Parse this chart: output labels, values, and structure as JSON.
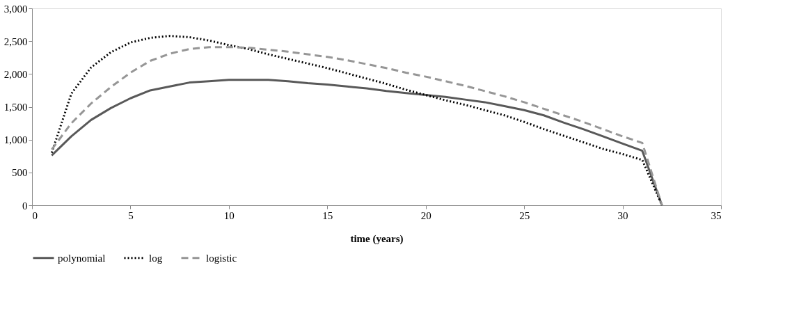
{
  "chart_data": {
    "type": "line",
    "xlabel": "time (years)",
    "legend": "bottom",
    "grid": false,
    "marker": "none",
    "x": [
      1,
      2,
      3,
      4,
      5,
      6,
      7,
      8,
      9,
      10,
      11,
      12,
      13,
      14,
      15,
      16,
      17,
      18,
      19,
      20,
      21,
      22,
      23,
      24,
      25,
      26,
      27,
      28,
      29,
      30,
      31,
      32
    ],
    "xlim": [
      0,
      35
    ],
    "xticks": [
      0,
      5,
      10,
      15,
      20,
      25,
      30,
      35
    ],
    "ylim": [
      0,
      3000
    ],
    "yticks": [
      0,
      500,
      {
        "value": 1000,
        "label": "1,000"
      },
      {
        "value": 1500,
        "label": "1,500"
      },
      {
        "value": 2000,
        "label": "2,000"
      },
      {
        "value": 2500,
        "label": "2,500"
      },
      {
        "value": 3000,
        "label": "3,000"
      }
    ],
    "series": [
      {
        "name": "polynomial",
        "color": "#595959",
        "line_style": "solid",
        "values": [
          760,
          1050,
          1300,
          1480,
          1630,
          1750,
          1810,
          1870,
          1890,
          1910,
          1910,
          1910,
          1890,
          1860,
          1840,
          1810,
          1780,
          1740,
          1710,
          1680,
          1650,
          1610,
          1570,
          1510,
          1450,
          1370,
          1260,
          1160,
          1050,
          940,
          830,
          0
        ]
      },
      {
        "name": "log",
        "color": "#000000",
        "line_style": "dotted",
        "values": [
          800,
          1700,
          2100,
          2330,
          2480,
          2550,
          2580,
          2560,
          2510,
          2440,
          2380,
          2300,
          2230,
          2160,
          2090,
          2010,
          1930,
          1850,
          1760,
          1680,
          1600,
          1530,
          1450,
          1370,
          1270,
          1160,
          1060,
          960,
          860,
          780,
          690,
          0
        ]
      },
      {
        "name": "logistic",
        "color": "#969696",
        "line_style": "dashed",
        "values": [
          850,
          1250,
          1550,
          1800,
          2020,
          2200,
          2310,
          2380,
          2410,
          2410,
          2400,
          2370,
          2340,
          2300,
          2260,
          2210,
          2150,
          2090,
          2020,
          1960,
          1890,
          1820,
          1740,
          1660,
          1570,
          1470,
          1370,
          1270,
          1160,
          1050,
          950,
          0
        ]
      }
    ]
  }
}
